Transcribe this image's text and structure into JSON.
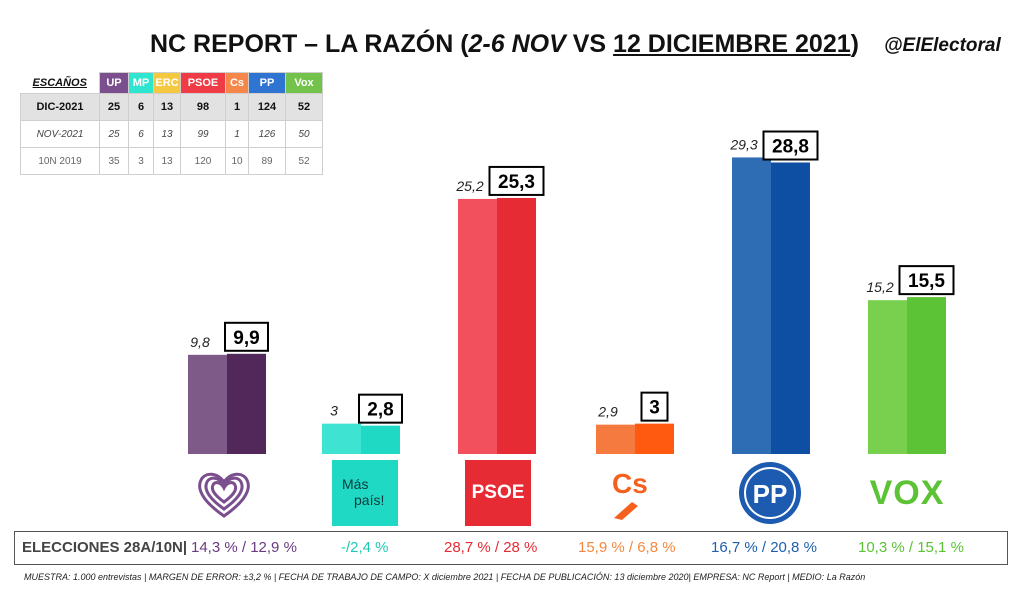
{
  "title": {
    "main": "NC REPORT – LA RAZÓN (",
    "period": "2-6 NOV",
    "vs": " VS ",
    "date": "12 DICIEMBRE 2021",
    "close": ")"
  },
  "handle": "@ElElectoral",
  "seats_table": {
    "label": "ESCAÑOS",
    "parties": [
      "UP",
      "MP",
      "ERC",
      "PSOE",
      "Cs",
      "PP",
      "Vox"
    ],
    "party_colors": [
      "#7b4f8e",
      "#2ee5cf",
      "#f5c842",
      "#ee3b45",
      "#f6874a",
      "#2f74d0",
      "#73c24a"
    ],
    "rows": [
      {
        "label": "DIC-2021",
        "values": [
          "25",
          "6",
          "13",
          "98",
          "1",
          "124",
          "52"
        ]
      },
      {
        "label": "NOV-2021",
        "values": [
          "25",
          "6",
          "13",
          "99",
          "1",
          "126",
          "50"
        ]
      },
      {
        "label": "10N 2019",
        "values": [
          "35",
          "3",
          "13",
          "120",
          "10",
          "89",
          "52"
        ]
      }
    ]
  },
  "chart_data": {
    "type": "bar",
    "categories": [
      "UP",
      "Más País",
      "PSOE",
      "Cs",
      "PP",
      "Vox"
    ],
    "series": [
      {
        "name": "NOV-2021",
        "values": [
          9.8,
          3,
          25.2,
          2.9,
          29.3,
          15.2
        ]
      },
      {
        "name": "DIC-2021",
        "values": [
          9.9,
          2.8,
          25.3,
          3,
          28.8,
          15.5
        ]
      }
    ],
    "labels_prev": [
      "9,8",
      "3",
      "25,2",
      "2,9",
      "29,3",
      "15,2"
    ],
    "labels_curr": [
      "9,9",
      "2,8",
      "25,3",
      "3",
      "28,8",
      "15,5"
    ],
    "colors_prev": [
      "#7d5a87",
      "#3fe3d2",
      "#f2505c",
      "#f57a3f",
      "#2e6db4",
      "#78d04e"
    ],
    "colors_curr": [
      "#52285a",
      "#20d9c5",
      "#e62b35",
      "#ff5a0f",
      "#0f4fa3",
      "#5cc236"
    ],
    "ylim": [
      0,
      33
    ],
    "title": "",
    "xlabel": "",
    "ylabel": ""
  },
  "logos": {
    "up": "heart-logo",
    "mp_line1": "Más",
    "mp_line2": "país!",
    "psoe": "PSOE",
    "cs": "Cs",
    "pp": "PP",
    "vox": "VOX"
  },
  "elections": {
    "label": "ELECCIONES 28A/10N|",
    "values": [
      "14,3 % / 12,9 %",
      "-/2,4 %",
      "28,7  % / 28 %",
      "15,9 % / 6,8 %",
      "16,7 % / 20,8 %",
      "10,3 % / 15,1 %"
    ],
    "colors": [
      "#6b3a80",
      "#20c9b7",
      "#e62b35",
      "#f5883f",
      "#1e5fb0",
      "#5cc236"
    ]
  },
  "footnote": "MUESTRA: 1.000 entrevistas | MARGEN DE ERROR: ±3,2 % | FECHA DE TRABAJO DE CAMPO: X diciembre 2021 | FECHA DE PUBLICACIÓN: 13 diciembre 2020| EMPRESA: NC Report | MEDIO: La Razón"
}
